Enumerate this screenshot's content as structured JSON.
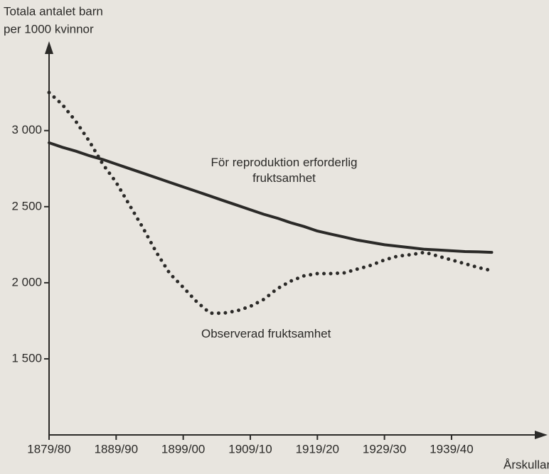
{
  "chart_data": {
    "type": "line",
    "ylabel": [
      "Totala antalet barn",
      "per 1000 kvinnor"
    ],
    "xlabel": "Årskullar",
    "x": [
      1880,
      1882,
      1884,
      1886,
      1888,
      1890,
      1892,
      1894,
      1896,
      1898,
      1900,
      1902,
      1904,
      1906,
      1908,
      1910,
      1912,
      1914,
      1916,
      1918,
      1920,
      1922,
      1924,
      1926,
      1928,
      1930,
      1932,
      1934,
      1936,
      1938,
      1940,
      1942,
      1944,
      1946
    ],
    "series": [
      {
        "name": "För reproduktion erforderlig fruktsamhet",
        "color": "#2b2a28",
        "style": "solid",
        "values": [
          2920,
          2890,
          2865,
          2835,
          2810,
          2780,
          2750,
          2720,
          2690,
          2660,
          2630,
          2600,
          2570,
          2540,
          2510,
          2480,
          2450,
          2425,
          2395,
          2370,
          2340,
          2320,
          2300,
          2280,
          2265,
          2250,
          2240,
          2230,
          2220,
          2215,
          2210,
          2205,
          2203,
          2200
        ]
      },
      {
        "name": "Observerad fruktsamhet",
        "color": "#2b2a28",
        "style": "dotted",
        "values": [
          3250,
          3170,
          3060,
          2930,
          2780,
          2660,
          2510,
          2360,
          2200,
          2060,
          1970,
          1875,
          1800,
          1800,
          1815,
          1845,
          1890,
          1960,
          2010,
          2045,
          2060,
          2060,
          2065,
          2090,
          2115,
          2150,
          2175,
          2185,
          2200,
          2175,
          2150,
          2125,
          2100,
          2080
        ]
      }
    ],
    "xlim": [
      1880,
      1954
    ],
    "xticks": [
      {
        "value": 1880,
        "label": "1879/80"
      },
      {
        "value": 1890,
        "label": "1889/90"
      },
      {
        "value": 1900,
        "label": "1899/00"
      },
      {
        "value": 1910,
        "label": "1909/10"
      },
      {
        "value": 1920,
        "label": "1919/20"
      },
      {
        "value": 1930,
        "label": "1929/30"
      },
      {
        "value": 1940,
        "label": "1939/40"
      }
    ],
    "ylim": [
      1000,
      3550
    ],
    "yticks": [
      {
        "value": 1500,
        "label": "1 500"
      },
      {
        "value": 2000,
        "label": "2 000"
      },
      {
        "value": 2500,
        "label": "2 500"
      },
      {
        "value": 3000,
        "label": "3 000"
      }
    ],
    "grid": false
  }
}
